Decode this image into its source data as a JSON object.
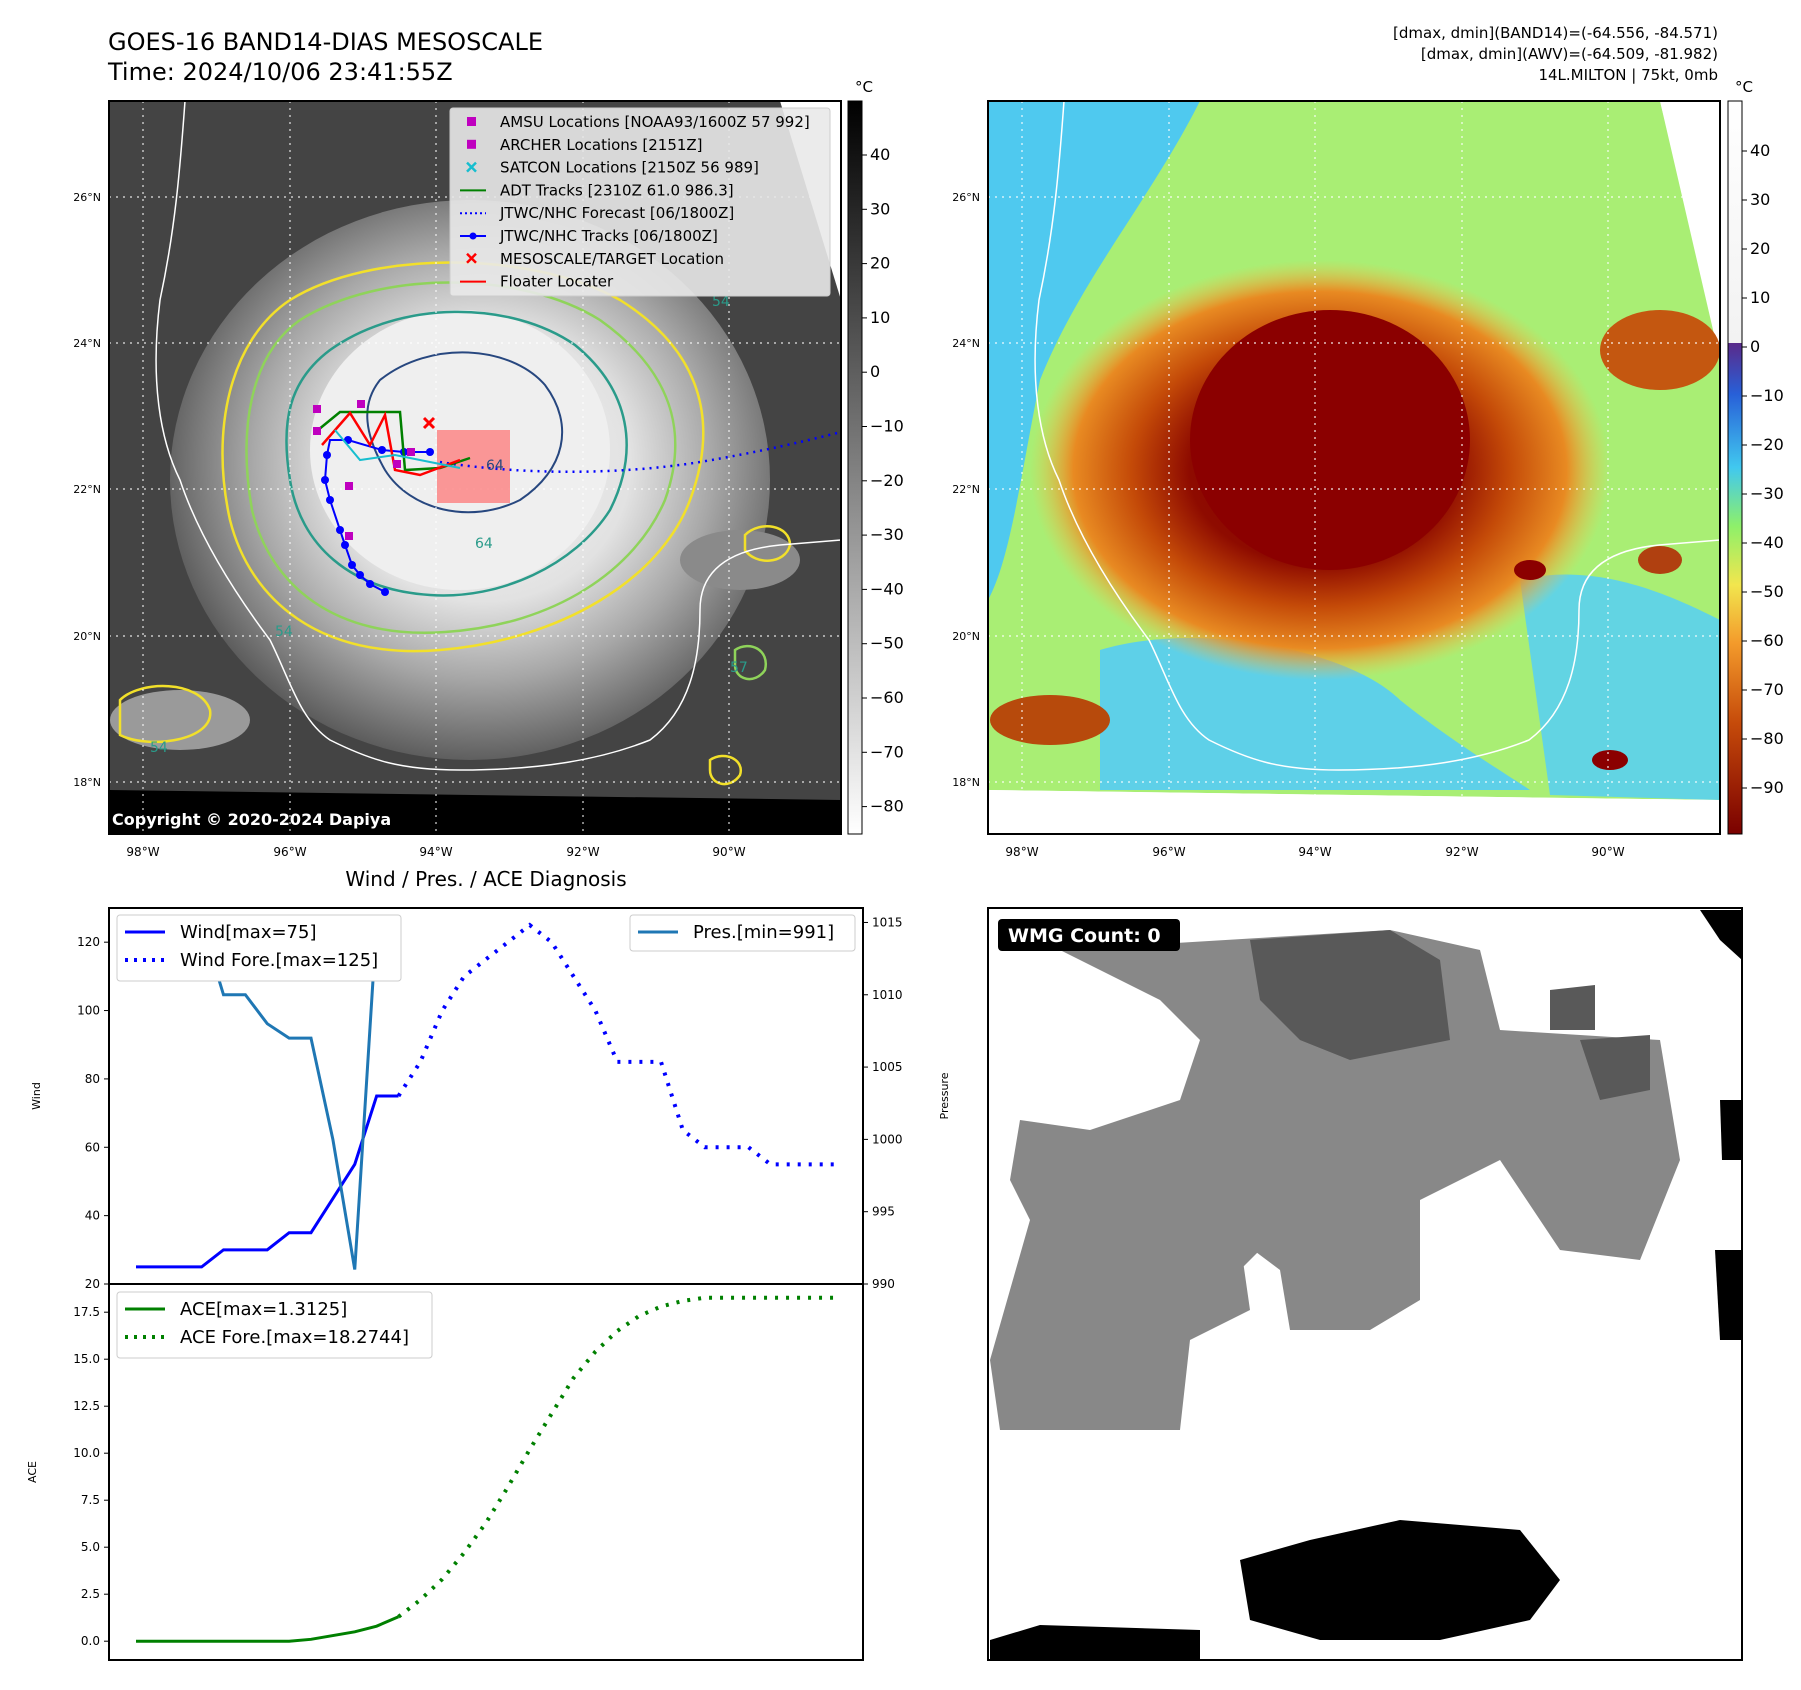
{
  "header": {
    "title": "GOES-16 BAND14-DIAS MESOSCALE",
    "time": "Time: 2024/10/06 23:41:55Z",
    "range_band14": "[dmax, dmin](BAND14)=(-64.556, -84.571)",
    "range_awv": "[dmax, dmin](AWV)=(-64.509, -81.982)",
    "storm_info": "14L.MILTON | 75kt, 0mb"
  },
  "map": {
    "lat_labels": [
      "26°N",
      "24°N",
      "22°N",
      "20°N",
      "18°N"
    ],
    "lon_labels": [
      "98°W",
      "96°W",
      "94°W",
      "92°W",
      "90°W"
    ],
    "copyright": "Copyright © 2020-2024 Dapiya",
    "legend": [
      {
        "label": "AMSU Locations [NOAA93/1600Z 57 992]",
        "symbol": "square",
        "color": "#bf00bf"
      },
      {
        "label": "ARCHER Locations [2151Z]",
        "symbol": "square",
        "color": "#bf00bf"
      },
      {
        "label": "SATCON Locations [2150Z 56 989]",
        "symbol": "x",
        "color": "#17becf"
      },
      {
        "label": "ADT Tracks [2310Z 61.0 986.3]",
        "symbol": "line",
        "color": "#008000"
      },
      {
        "label": "JTWC/NHC Forecast [06/1800Z]",
        "symbol": "dotted",
        "color": "#0000ff"
      },
      {
        "label": "JTWC/NHC Tracks [06/1800Z]",
        "symbol": "line-dot",
        "color": "#0000ff"
      },
      {
        "label": "MESOSCALE/TARGET Location",
        "symbol": "x",
        "color": "#ff0000"
      },
      {
        "label": "Floater Locater",
        "symbol": "line",
        "color": "#ff0000"
      }
    ],
    "contour_labels": [
      "64",
      "54",
      "54",
      "54",
      "57",
      "64"
    ]
  },
  "colorbar_gray": {
    "unit": "°C",
    "ticks": [
      "40",
      "30",
      "20",
      "10",
      "0",
      "−10",
      "−20",
      "−30",
      "−40",
      "−50",
      "−60",
      "−70",
      "−80"
    ]
  },
  "colorbar_color": {
    "unit": "°C",
    "ticks": [
      "40",
      "30",
      "20",
      "10",
      "0",
      "−10",
      "−20",
      "−30",
      "−40",
      "−50",
      "−60",
      "−70",
      "−80",
      "−90"
    ]
  },
  "colors": {
    "wind": "#0000ff",
    "pressure": "#1f77b4",
    "ace": "#008000",
    "cold_core": "#8b0000"
  },
  "chart_data": [
    {
      "type": "line",
      "title": "Wind / Pres. / ACE Diagnosis",
      "ylabel": "Wind",
      "y2label": "Pressure",
      "ylim": [
        20,
        130
      ],
      "y2lim": [
        990,
        1016
      ],
      "xlim": [
        0,
        32
      ],
      "yticks": [
        "120",
        "100",
        "80",
        "60",
        "40",
        "20"
      ],
      "y2ticks": [
        "1015",
        "1010",
        "1005",
        "1000",
        "995",
        "990"
      ],
      "series": [
        {
          "name": "Wind[max=75]",
          "style": "solid",
          "axis": "left",
          "x": [
            0,
            1,
            2,
            3,
            4,
            5,
            6,
            7,
            8,
            9,
            10,
            11,
            12
          ],
          "values": [
            25,
            25,
            25,
            25,
            30,
            30,
            30,
            35,
            35,
            45,
            55,
            75,
            75
          ]
        },
        {
          "name": "Wind Fore.[max=125]",
          "style": "dotted",
          "axis": "left",
          "x": [
            12,
            13,
            14,
            15,
            16,
            17,
            18,
            19,
            20,
            21,
            22,
            23,
            24,
            25,
            26,
            27,
            28,
            29,
            30,
            31,
            32
          ],
          "values": [
            75,
            85,
            100,
            110,
            115,
            120,
            125,
            120,
            110,
            100,
            85,
            85,
            85,
            65,
            60,
            60,
            60,
            55,
            55,
            55,
            55
          ]
        },
        {
          "name": "Pres.[min=991]",
          "style": "solid",
          "axis": "right",
          "x": [
            1,
            2,
            3,
            4,
            5,
            6,
            7,
            8,
            9,
            10,
            11,
            12
          ],
          "values": [
            1015,
            1015,
            1015,
            1010,
            1010,
            1008,
            1007,
            1007,
            1000,
            991,
            1015,
            1015
          ]
        }
      ]
    },
    {
      "type": "line",
      "ylabel": "ACE",
      "ylim": [
        -1,
        19
      ],
      "yticks": [
        "17.5",
        "15.0",
        "12.5",
        "10.0",
        "7.5",
        "5.0",
        "2.5",
        "0.0"
      ],
      "series": [
        {
          "name": "ACE[max=1.3125]",
          "style": "solid",
          "x": [
            0,
            1,
            2,
            3,
            4,
            5,
            6,
            7,
            8,
            9,
            10,
            11,
            12
          ],
          "values": [
            0,
            0,
            0,
            0,
            0,
            0,
            0,
            0,
            0.1,
            0.3,
            0.5,
            0.8,
            1.3
          ]
        },
        {
          "name": "ACE Fore.[max=18.2744]",
          "style": "dotted",
          "x": [
            12,
            13,
            14,
            15,
            16,
            17,
            18,
            19,
            20,
            21,
            22,
            23,
            24,
            25,
            26,
            27,
            28,
            29,
            30,
            31,
            32
          ],
          "values": [
            1.3,
            2.2,
            3.3,
            4.7,
            6.3,
            8.2,
            10.2,
            12.1,
            14.0,
            15.4,
            16.5,
            17.3,
            17.8,
            18.1,
            18.27,
            18.27,
            18.27,
            18.27,
            18.27,
            18.27,
            18.27
          ]
        }
      ]
    }
  ],
  "wmg": {
    "label": "WMG Count: 0"
  }
}
